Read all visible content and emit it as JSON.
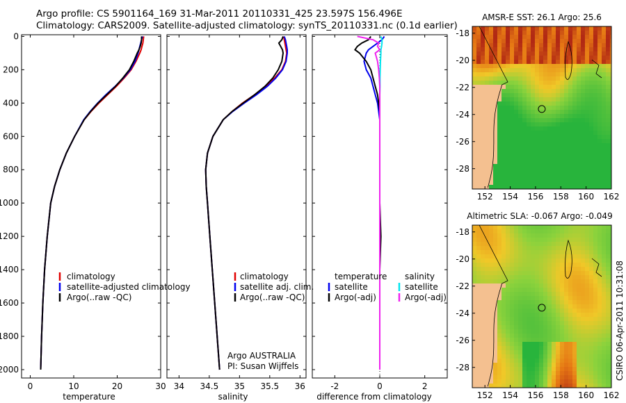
{
  "header": {
    "line1": "Argo profile: CS 5901164_169 31-Mar-2011 20110331_425 23.597S 156.496E",
    "line2": "Climatology: CARS2009. Satellite-adjusted climatology: synTS_20110331.nc (0.1d earlier)"
  },
  "side_caption": "CSIRO 06-Apr-2011 10:31:08",
  "colors": {
    "red": "#e00000",
    "blue": "#0000ee",
    "black": "#000000",
    "cyan": "#00e5ee",
    "magenta": "#ee22ee"
  },
  "chart_data": [
    {
      "type": "line",
      "name": "temperature-panel",
      "xlabel": "temperature",
      "ylabel": "",
      "xlim": [
        -2,
        30
      ],
      "ylim": [
        2050,
        -10
      ],
      "y_reversed": true,
      "xticks": [
        0,
        10,
        20,
        30
      ],
      "yticks": [
        0,
        200,
        400,
        600,
        800,
        1000,
        1200,
        1400,
        1600,
        1800,
        2000
      ],
      "depth": [
        0,
        20,
        40,
        60,
        80,
        100,
        150,
        200,
        250,
        300,
        350,
        400,
        450,
        500,
        600,
        700,
        800,
        900,
        1000,
        1200,
        1400,
        1600,
        1800,
        2000
      ],
      "series": [
        {
          "name": "climatology",
          "color": "red",
          "values": [
            26.1,
            26.0,
            25.9,
            25.7,
            25.5,
            25.2,
            24.3,
            23.2,
            21.6,
            19.8,
            17.8,
            15.8,
            14.0,
            12.4,
            10.2,
            8.3,
            6.8,
            5.6,
            4.7,
            3.9,
            3.3,
            2.9,
            2.6,
            2.4
          ]
        },
        {
          "name": "satellite-adjusted climatology",
          "color": "blue",
          "values": [
            25.8,
            25.6,
            25.4,
            25.2,
            25.0,
            24.8,
            24.1,
            23.0,
            21.4,
            19.5,
            17.4,
            15.5,
            13.8,
            12.3,
            10.2,
            8.3,
            6.8,
            5.6,
            4.7,
            3.9,
            3.3,
            2.9,
            2.6,
            2.4
          ]
        },
        {
          "name": "Argo(..raw -QC)",
          "color": "black",
          "values": [
            25.6,
            25.6,
            25.5,
            25.3,
            25.0,
            24.6,
            23.8,
            22.8,
            21.3,
            19.6,
            17.6,
            15.6,
            13.9,
            12.4,
            10.2,
            8.3,
            6.8,
            5.6,
            4.7,
            3.9,
            3.3,
            2.9,
            2.6,
            2.4
          ]
        }
      ],
      "legend": [
        "climatology",
        "satellite-adjusted climatology",
        "Argo(..raw -QC)"
      ]
    },
    {
      "type": "line",
      "name": "salinity-panel",
      "xlabel": "salinity",
      "ylabel": "",
      "xlim": [
        33.8,
        36.1
      ],
      "ylim": [
        2050,
        -10
      ],
      "y_reversed": true,
      "xticks": [
        34,
        34.5,
        35,
        35.5,
        36
      ],
      "yticks": [
        0,
        200,
        400,
        600,
        800,
        1000,
        1200,
        1400,
        1600,
        1800,
        2000
      ],
      "tick_labels": [
        "34",
        "34.5",
        "35",
        "35.5",
        "36"
      ],
      "depth": [
        0,
        20,
        40,
        60,
        80,
        100,
        150,
        200,
        250,
        300,
        350,
        400,
        450,
        500,
        600,
        700,
        800,
        900,
        1000,
        1200,
        1400,
        1600,
        1800,
        2000
      ],
      "series": [
        {
          "name": "climatology",
          "color": "red",
          "values": [
            35.73,
            35.74,
            35.75,
            35.76,
            35.77,
            35.78,
            35.76,
            35.7,
            35.58,
            35.43,
            35.25,
            35.05,
            34.88,
            34.73,
            34.56,
            34.47,
            34.44,
            34.45,
            34.47,
            34.51,
            34.55,
            34.59,
            34.63,
            34.67
          ]
        },
        {
          "name": "satellite adj. clim.",
          "color": "blue",
          "values": [
            35.74,
            35.76,
            35.77,
            35.78,
            35.79,
            35.79,
            35.77,
            35.71,
            35.6,
            35.46,
            35.28,
            35.08,
            34.89,
            34.73,
            34.56,
            34.47,
            34.44,
            34.45,
            34.47,
            34.51,
            34.55,
            34.59,
            34.63,
            34.67
          ]
        },
        {
          "name": "Argo(..raw -QC)",
          "color": "black",
          "values": [
            35.72,
            35.7,
            35.65,
            35.68,
            35.71,
            35.72,
            35.7,
            35.64,
            35.55,
            35.42,
            35.25,
            35.06,
            34.88,
            34.73,
            34.56,
            34.47,
            34.44,
            34.45,
            34.47,
            34.51,
            34.55,
            34.59,
            34.63,
            34.67
          ]
        }
      ],
      "legend": [
        "climatology",
        "satellite adj. clim.",
        "Argo(..raw -QC)"
      ],
      "annotation": [
        "Argo AUSTRALIA",
        "PI: Susan Wijffels"
      ]
    },
    {
      "type": "line",
      "name": "difference-panel",
      "xlabel": "difference from climatology",
      "ylabel": "",
      "xlim": [
        -3,
        3
      ],
      "ylim": [
        2050,
        -10
      ],
      "y_reversed": true,
      "xticks": [
        -2,
        0,
        2
      ],
      "yticks": [
        0,
        200,
        400,
        600,
        800,
        1000,
        1200,
        1400,
        1600,
        1800,
        2000
      ],
      "depth": [
        0,
        20,
        40,
        60,
        80,
        100,
        150,
        200,
        250,
        300,
        350,
        400,
        450,
        500,
        600,
        700,
        800,
        900,
        1000,
        1200,
        1400,
        1600,
        1800,
        2000
      ],
      "series": [
        {
          "name": "temperature satellite",
          "color": "blue",
          "values": [
            0.2,
            0.1,
            -0.1,
            -0.3,
            -0.5,
            -0.6,
            -0.7,
            -0.6,
            -0.4,
            -0.3,
            -0.2,
            -0.1,
            -0.05,
            0,
            0,
            0,
            0,
            0,
            0,
            0,
            0,
            0,
            0,
            0
          ]
        },
        {
          "name": "temperature Argo(-adj)",
          "color": "black",
          "values": [
            -0.4,
            -0.5,
            -0.8,
            -1.0,
            -1.1,
            -0.9,
            -0.6,
            -0.4,
            -0.3,
            -0.2,
            -0.1,
            -0.05,
            0,
            0,
            0,
            0,
            0,
            0,
            0,
            0.05,
            0,
            0,
            0,
            0
          ]
        },
        {
          "name": "salinity satellite",
          "color": "cyan",
          "values": [
            0.05,
            0.1,
            0.1,
            0.08,
            0.05,
            0.05,
            0.03,
            0.02,
            0.01,
            0.01,
            0,
            0,
            0,
            0,
            0,
            0,
            0,
            0,
            0,
            0,
            0,
            0,
            0,
            0
          ]
        },
        {
          "name": "salinity Argo(-adj)",
          "color": "magenta",
          "values": [
            -1.0,
            -0.3,
            -0.05,
            -0.1,
            0.0,
            -0.2,
            -0.1,
            -0.05,
            -0.02,
            0,
            0,
            0,
            0,
            0,
            0,
            0,
            0,
            0,
            0,
            0,
            0,
            0,
            0,
            0
          ]
        }
      ],
      "legend_titles": [
        "temperature",
        "salinity"
      ],
      "legend": [
        "satellite",
        "Argo(-adj)",
        "satellite",
        "Argo(-adj)"
      ]
    },
    {
      "type": "heatmap",
      "name": "sst-map",
      "title": "AMSR-E SST: 26.1 Argo: 25.6",
      "xlim": [
        151,
        162
      ],
      "ylim": [
        -29.5,
        -17.5
      ],
      "xticks": [
        152,
        154,
        156,
        158,
        160,
        162
      ],
      "yticks": [
        -18,
        -20,
        -22,
        -24,
        -26,
        -28
      ],
      "argo_position": {
        "lon": 156.496,
        "lat": -23.597
      },
      "value_at_argo": 26.1,
      "argo_value": 25.6
    },
    {
      "type": "heatmap",
      "name": "sla-map",
      "title": "Altimetric SLA: -0.067 Argo: -0.049",
      "xlim": [
        151,
        162
      ],
      "ylim": [
        -29.5,
        -17.5
      ],
      "xticks": [
        152,
        154,
        156,
        158,
        160,
        162
      ],
      "yticks": [
        -18,
        -20,
        -22,
        -24,
        -26,
        -28
      ],
      "argo_position": {
        "lon": 156.496,
        "lat": -23.597
      },
      "value_at_argo": -0.067,
      "argo_value": -0.049
    }
  ]
}
